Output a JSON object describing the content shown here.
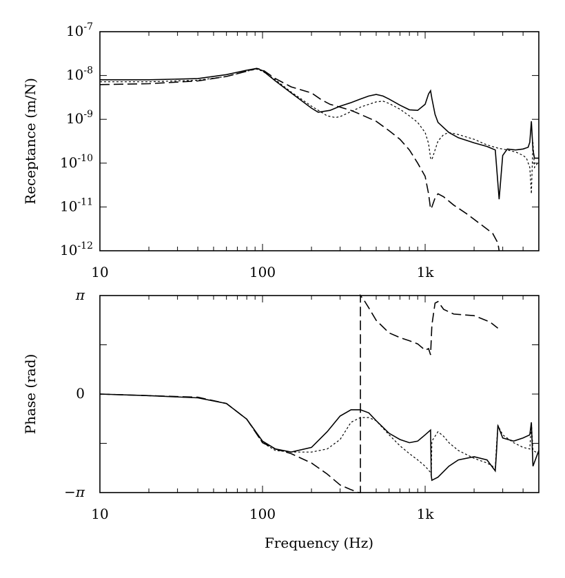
{
  "chart_data": [
    {
      "type": "line",
      "id": "receptance",
      "xscale": "log",
      "yscale": "log",
      "xlim": [
        10,
        5000
      ],
      "ylim": [
        1e-12,
        1e-07
      ],
      "xlabel": "",
      "ylabel": "Receptance (m/N)",
      "x_ticks": [
        {
          "value": 10,
          "label": "10"
        },
        {
          "value": 100,
          "label": "100"
        },
        {
          "value": 1000,
          "label": "1k"
        }
      ],
      "y_ticks": [
        {
          "value": 1e-07,
          "base": "10",
          "exp": "-7"
        },
        {
          "value": 1e-08,
          "base": "10",
          "exp": "-8"
        },
        {
          "value": 1e-09,
          "base": "10",
          "exp": "-9"
        },
        {
          "value": 1e-10,
          "base": "10",
          "exp": "-10"
        },
        {
          "value": 1e-11,
          "base": "10",
          "exp": "-11"
        },
        {
          "value": 1e-12,
          "base": "10",
          "exp": "-12"
        }
      ],
      "series": [
        {
          "name": "solid",
          "style": "solid",
          "x": [
            10,
            20,
            40,
            60,
            80,
            92,
            100,
            120,
            150,
            200,
            220,
            260,
            300,
            350,
            400,
            450,
            500,
            550,
            600,
            700,
            800,
            900,
            1000,
            1050,
            1080,
            1100,
            1150,
            1200,
            1400,
            1600,
            2000,
            2400,
            2700,
            2850,
            3000,
            3200,
            3600,
            4000,
            4300,
            4400,
            4500,
            4600,
            4700,
            5000
          ],
          "y": [
            8e-09,
            8e-09,
            8.5e-09,
            1.05e-08,
            1.32e-08,
            1.45e-08,
            1.3e-08,
            7.5e-09,
            4e-09,
            1.8e-09,
            1.45e-09,
            1.6e-09,
            2e-09,
            2.4e-09,
            2.9e-09,
            3.4e-09,
            3.7e-09,
            3.4e-09,
            2.9e-09,
            2.1e-09,
            1.65e-09,
            1.6e-09,
            2.2e-09,
            3.8e-09,
            4.5e-09,
            3e-09,
            1.3e-09,
            8.5e-10,
            5e-10,
            3.8e-10,
            2.9e-10,
            2.4e-10,
            2e-10,
            1.5e-11,
            1.5e-10,
            2.1e-10,
            2e-10,
            2.1e-10,
            2.3e-10,
            3e-10,
            9e-10,
            2e-10,
            1.3e-10,
            1.3e-10
          ]
        },
        {
          "name": "short-dash",
          "style": "dotted",
          "x": [
            10,
            20,
            40,
            60,
            80,
            92,
            100,
            120,
            150,
            200,
            250,
            280,
            300,
            350,
            400,
            450,
            500,
            550,
            600,
            700,
            800,
            900,
            1000,
            1050,
            1080,
            1100,
            1150,
            1200,
            1300,
            1400,
            1600,
            2000,
            2400,
            2800,
            3200,
            3600,
            4000,
            4200,
            4400,
            4500,
            4600,
            4700,
            5000
          ],
          "y": [
            7.2e-09,
            7.2e-09,
            7.8e-09,
            9.5e-09,
            1.25e-08,
            1.4e-08,
            1.25e-08,
            8e-09,
            4.2e-09,
            2e-09,
            1.2e-09,
            1.1e-09,
            1.15e-09,
            1.5e-09,
            1.9e-09,
            2.2e-09,
            2.5e-09,
            2.6e-09,
            2.3e-09,
            1.7e-09,
            1.2e-09,
            8.5e-10,
            5e-10,
            2.8e-10,
            1.3e-10,
            1.2e-10,
            2e-10,
            3.2e-10,
            4.5e-10,
            5e-10,
            4.5e-10,
            3.5e-10,
            2.6e-10,
            2.2e-10,
            2e-10,
            1.8e-10,
            1.5e-10,
            1.3e-10,
            8e-11,
            2e-11,
            3e-10,
            8e-11,
            1.1e-10
          ]
        },
        {
          "name": "long-dash",
          "style": "dashed",
          "x": [
            10,
            20,
            40,
            60,
            80,
            92,
            100,
            120,
            150,
            200,
            230,
            260,
            300,
            350,
            400,
            500,
            600,
            700,
            800,
            900,
            1000,
            1050,
            1080,
            1100,
            1150,
            1200,
            1300,
            1500,
            1800,
            2200,
            2600,
            2800,
            2850
          ],
          "y": [
            6.2e-09,
            6.5e-09,
            7.5e-09,
            9.5e-09,
            1.25e-08,
            1.45e-08,
            1.35e-08,
            8.5e-09,
            5.5e-09,
            4e-09,
            2.8e-09,
            2.2e-09,
            1.9e-09,
            1.6e-09,
            1.3e-09,
            9e-10,
            5.5e-10,
            3.5e-10,
            2e-10,
            1e-10,
            5e-11,
            2e-11,
            9e-12,
            1e-11,
            1.6e-11,
            2e-11,
            1.7e-11,
            1.1e-11,
            7e-12,
            4e-12,
            2.5e-12,
            1.5e-12,
            1e-12
          ]
        }
      ]
    },
    {
      "type": "line",
      "id": "phase",
      "xscale": "log",
      "yscale": "linear",
      "xlim": [
        10,
        5000
      ],
      "ylim": [
        -3.14159,
        3.14159
      ],
      "xlabel": "Frequency (Hz)",
      "ylabel": "Phase (rad)",
      "x_ticks": [
        {
          "value": 10,
          "label": "10"
        },
        {
          "value": 100,
          "label": "100"
        },
        {
          "value": 1000,
          "label": "1k"
        }
      ],
      "y_ticks": [
        {
          "value": 3.14159,
          "label": "π"
        },
        {
          "value": 0,
          "label": "0"
        },
        {
          "value": -3.14159,
          "label": "−π"
        }
      ],
      "series": [
        {
          "name": "solid",
          "style": "solid",
          "x": [
            10,
            20,
            40,
            60,
            80,
            100,
            120,
            150,
            200,
            250,
            300,
            350,
            400,
            450,
            500,
            600,
            700,
            800,
            900,
            1000,
            1080,
            1090,
            1100,
            1200,
            1400,
            1600,
            2000,
            2400,
            2700,
            2750,
            2800,
            3000,
            3500,
            4000,
            4400,
            4500,
            4600,
            5000
          ],
          "y": [
            0,
            -0.05,
            -0.12,
            -0.3,
            -0.8,
            -1.5,
            -1.75,
            -1.85,
            -1.7,
            -1.2,
            -0.7,
            -0.5,
            -0.5,
            -0.6,
            -0.85,
            -1.25,
            -1.45,
            -1.55,
            -1.5,
            -1.3,
            -1.15,
            -2.6,
            -2.75,
            -2.65,
            -2.3,
            -2.1,
            -2.0,
            -2.1,
            -2.45,
            -1.8,
            -1.0,
            -1.4,
            -1.5,
            -1.4,
            -1.3,
            -0.9,
            -2.3,
            -1.8
          ]
        },
        {
          "name": "short-dash",
          "style": "dotted",
          "x": [
            10,
            20,
            40,
            60,
            80,
            100,
            120,
            150,
            200,
            250,
            300,
            350,
            400,
            450,
            500,
            600,
            700,
            800,
            900,
            1000,
            1080,
            1090,
            1100,
            1200,
            1300,
            1400,
            1600,
            2000,
            2400,
            2700,
            2750,
            2800,
            3000,
            3500,
            4000,
            4400,
            4500,
            4600,
            5000
          ],
          "y": [
            0,
            -0.05,
            -0.12,
            -0.3,
            -0.8,
            -1.55,
            -1.8,
            -1.85,
            -1.85,
            -1.75,
            -1.45,
            -0.9,
            -0.75,
            -0.75,
            -0.85,
            -1.3,
            -1.65,
            -1.9,
            -2.1,
            -2.3,
            -2.5,
            -2.6,
            -1.5,
            -1.2,
            -1.35,
            -1.55,
            -1.8,
            -2.05,
            -2.2,
            -2.35,
            -1.6,
            -1.0,
            -1.3,
            -1.55,
            -1.7,
            -1.75,
            -0.9,
            -1.8,
            -1.9
          ]
        },
        {
          "name": "long-dash",
          "style": "dashed",
          "x": [
            10,
            20,
            40,
            60,
            80,
            100,
            120,
            150,
            200,
            250,
            300,
            350,
            390,
            400,
            400.1,
            420,
            450,
            500,
            600,
            700,
            800,
            900,
            1000,
            1050,
            1080,
            1100,
            1150,
            1200,
            1300,
            1500,
            2000,
            2500,
            2800
          ],
          "y": [
            0,
            -0.05,
            -0.1,
            -0.3,
            -0.8,
            -1.55,
            -1.75,
            -1.9,
            -2.2,
            -2.55,
            -2.9,
            -3.05,
            -3.14159,
            -3.14159,
            3.14159,
            3.0,
            2.75,
            2.35,
            1.95,
            1.8,
            1.7,
            1.6,
            1.4,
            1.45,
            1.25,
            2.2,
            2.9,
            2.95,
            2.7,
            2.55,
            2.5,
            2.3,
            2.1
          ]
        }
      ]
    }
  ]
}
